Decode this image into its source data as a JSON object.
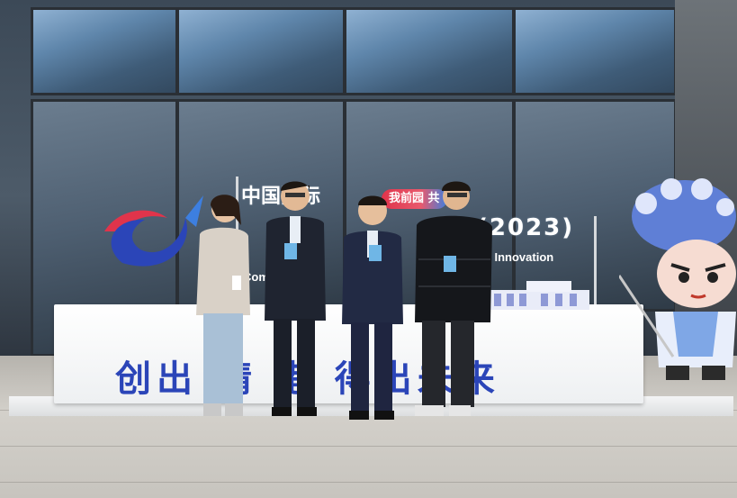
{
  "scene": {
    "description_free": true
  },
  "sign": {
    "title_line1": "中国国际",
    "title_line2": "(2023)",
    "pill_text": "我前园 共",
    "sub_right": "ats' Innovation",
    "sub_left": "Com",
    "slogan": "创出 精 港 得出未来"
  },
  "colors": {
    "sign_blue": "#2b45b8",
    "sign_red": "#e0344b"
  }
}
